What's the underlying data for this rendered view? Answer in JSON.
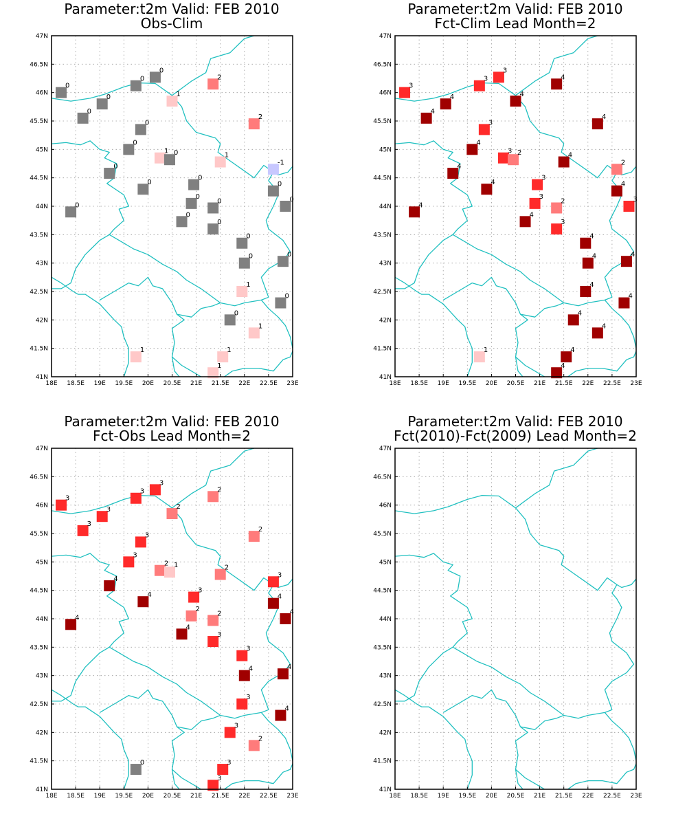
{
  "x_ticks": [
    "18E",
    "18.5E",
    "19E",
    "19.5E",
    "20E",
    "20.5E",
    "21E",
    "21.5E",
    "22E",
    "22.5E",
    "23E"
  ],
  "y_ticks": [
    "41N",
    "41.5N",
    "42N",
    "42.5N",
    "43N",
    "43.5N",
    "44N",
    "44.5N",
    "45N",
    "45.5N",
    "46N",
    "46.5N",
    "47N"
  ],
  "lon_range": [
    18,
    23
  ],
  "lat_range": [
    41,
    47
  ],
  "colors": {
    "border": "#20c0c0",
    "grid": "#9a9a9a",
    "value_-1": "#c8c8ff",
    "value_0": "#808080",
    "value_1": "#ffc8c8",
    "value_2": "#ff7b7b",
    "value_3": "#ff2a2a",
    "value_4": "#a00000"
  },
  "stations": [
    {
      "lon": 18.2,
      "lat": 46.0
    },
    {
      "lon": 18.65,
      "lat": 45.55
    },
    {
      "lon": 19.05,
      "lat": 45.8
    },
    {
      "lon": 19.75,
      "lat": 46.12
    },
    {
      "lon": 20.15,
      "lat": 46.27
    },
    {
      "lon": 19.85,
      "lat": 45.35
    },
    {
      "lon": 20.5,
      "lat": 45.85
    },
    {
      "lon": 21.35,
      "lat": 46.15
    },
    {
      "lon": 22.2,
      "lat": 45.45
    },
    {
      "lon": 19.6,
      "lat": 45.0
    },
    {
      "lon": 20.25,
      "lat": 44.85
    },
    {
      "lon": 20.45,
      "lat": 44.82
    },
    {
      "lon": 21.5,
      "lat": 44.78
    },
    {
      "lon": 22.6,
      "lat": 44.65
    },
    {
      "lon": 19.2,
      "lat": 44.58
    },
    {
      "lon": 19.9,
      "lat": 44.3
    },
    {
      "lon": 20.95,
      "lat": 44.38
    },
    {
      "lon": 22.6,
      "lat": 44.27
    },
    {
      "lon": 18.4,
      "lat": 43.9
    },
    {
      "lon": 20.9,
      "lat": 44.05
    },
    {
      "lon": 21.35,
      "lat": 43.97
    },
    {
      "lon": 22.85,
      "lat": 44.0
    },
    {
      "lon": 20.7,
      "lat": 43.73
    },
    {
      "lon": 21.35,
      "lat": 43.6
    },
    {
      "lon": 21.95,
      "lat": 43.35
    },
    {
      "lon": 22.0,
      "lat": 43.0
    },
    {
      "lon": 22.8,
      "lat": 43.03
    },
    {
      "lon": 21.95,
      "lat": 42.5
    },
    {
      "lon": 22.75,
      "lat": 42.3
    },
    {
      "lon": 21.7,
      "lat": 42.0
    },
    {
      "lon": 22.2,
      "lat": 41.77
    },
    {
      "lon": 19.75,
      "lat": 41.35
    },
    {
      "lon": 21.55,
      "lat": 41.35
    },
    {
      "lon": 21.35,
      "lat": 41.07
    }
  ],
  "panels": [
    {
      "title": "Parameter:t2m Valid: FEB 2010",
      "subtitle": "Obs-Clim",
      "values": [
        "0",
        "0",
        "0",
        "0",
        "0",
        "0",
        "1",
        "2",
        "2",
        "0",
        "1",
        "0",
        "1",
        "-1",
        "0",
        "0",
        "0",
        "0",
        "0",
        "0",
        "0",
        "0",
        "0",
        "0",
        "0",
        "0",
        "0",
        "1",
        "0",
        "0",
        "1",
        "1",
        "1",
        "1"
      ]
    },
    {
      "title": "Parameter:t2m Valid: FEB 2010",
      "subtitle": "Fct-Clim Lead Month=2",
      "values": [
        "3",
        "4",
        "4",
        "3",
        "3",
        "3",
        "4",
        "4",
        "4",
        "4",
        "3",
        "2",
        "4",
        "2",
        "4",
        "4",
        "3",
        "4",
        "4",
        "3",
        "2",
        "3",
        "4",
        "3",
        "4",
        "4",
        "4",
        "4",
        "4",
        "4",
        "4",
        "1",
        "4",
        "4"
      ]
    },
    {
      "title": "Parameter:t2m Valid: FEB 2010",
      "subtitle": "Fct-Obs Lead Month=2",
      "values": [
        "3",
        "3",
        "3",
        "3",
        "3",
        "3",
        "2",
        "2",
        "2",
        "3",
        "2",
        "1",
        "2",
        "3",
        "4",
        "4",
        "3",
        "4",
        "4",
        "2",
        "2",
        "4",
        "4",
        "3",
        "3",
        "4",
        "4",
        "3",
        "4",
        "3",
        "2",
        "0",
        "3",
        "3"
      ]
    },
    {
      "title": "Parameter:t2m Valid: FEB 2010",
      "subtitle": "Fct(2010)-Fct(2009) Lead Month=2",
      "values": []
    }
  ]
}
